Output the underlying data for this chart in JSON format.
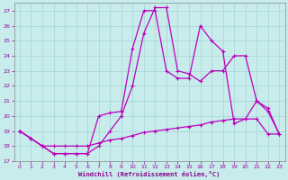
{
  "xlabel": "Windchill (Refroidissement éolien,°C)",
  "bg_color": "#c8ecec",
  "grid_color": "#aad8d8",
  "line_color": "#bb00bb",
  "xlim": [
    -0.5,
    23.5
  ],
  "ylim": [
    17,
    27.5
  ],
  "yticks": [
    17,
    18,
    19,
    20,
    21,
    22,
    23,
    24,
    25,
    26,
    27
  ],
  "xticks": [
    0,
    1,
    2,
    3,
    4,
    5,
    6,
    7,
    8,
    9,
    10,
    11,
    12,
    13,
    14,
    15,
    16,
    17,
    18,
    19,
    20,
    21,
    22,
    23
  ],
  "line1_x": [
    0,
    1,
    2,
    3,
    4,
    5,
    6,
    7,
    8,
    9,
    10,
    11,
    12,
    13,
    14,
    15,
    16,
    17,
    18,
    19,
    20,
    21,
    22,
    23
  ],
  "line1_y": [
    19.0,
    18.5,
    18.0,
    17.5,
    17.5,
    17.5,
    17.5,
    18.0,
    19.0,
    20.0,
    22.0,
    25.5,
    27.2,
    27.2,
    23.0,
    22.8,
    22.3,
    23.0,
    23.0,
    24.0,
    24.0,
    21.0,
    20.5,
    18.8
  ],
  "line2_x": [
    0,
    1,
    2,
    3,
    4,
    5,
    6,
    7,
    8,
    9,
    10,
    11,
    12,
    13,
    14,
    15,
    16,
    17,
    18,
    19,
    20,
    21,
    22,
    23
  ],
  "line2_y": [
    19.0,
    18.5,
    18.0,
    17.5,
    17.5,
    17.5,
    17.5,
    20.0,
    20.2,
    20.3,
    24.5,
    27.0,
    27.0,
    23.0,
    22.5,
    22.5,
    26.0,
    25.0,
    24.3,
    19.5,
    19.8,
    21.0,
    20.3,
    18.8
  ],
  "line3_x": [
    0,
    1,
    2,
    3,
    4,
    5,
    6,
    7,
    8,
    9,
    10,
    11,
    12,
    13,
    14,
    15,
    16,
    17,
    18,
    19,
    20,
    21,
    22,
    23
  ],
  "line3_y": [
    19.0,
    18.5,
    18.0,
    18.0,
    18.0,
    18.0,
    18.0,
    18.2,
    18.4,
    18.5,
    18.7,
    18.9,
    19.0,
    19.1,
    19.2,
    19.3,
    19.4,
    19.6,
    19.7,
    19.8,
    19.8,
    19.8,
    18.8,
    18.8
  ]
}
